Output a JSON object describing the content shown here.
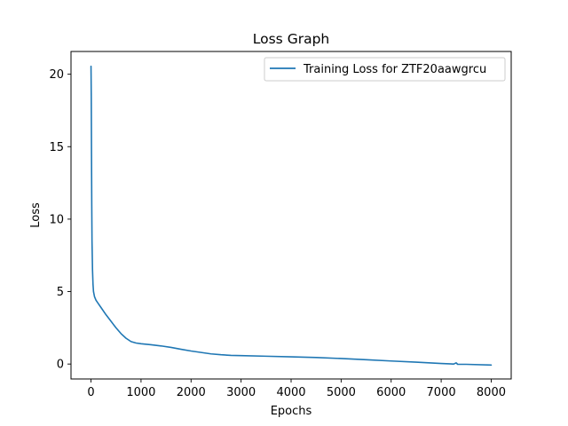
{
  "chart_data": {
    "type": "line",
    "title": "Loss Graph",
    "xlabel": "Epochs",
    "ylabel": "Loss",
    "xlim": [
      -400,
      8400
    ],
    "ylim": [
      -1.03,
      21.57
    ],
    "xticks": [
      0,
      1000,
      2000,
      3000,
      4000,
      5000,
      6000,
      7000,
      8000
    ],
    "yticks": [
      0,
      5,
      10,
      15,
      20
    ],
    "grid": false,
    "legend_position": "top-right",
    "series": [
      {
        "name": "Training Loss for ZTF20aawgrcu",
        "color": "#1f77b4",
        "points": [
          [
            0,
            20.55
          ],
          [
            5,
            18.5
          ],
          [
            10,
            14.5
          ],
          [
            15,
            11.0
          ],
          [
            20,
            8.5
          ],
          [
            30,
            6.5
          ],
          [
            40,
            5.5
          ],
          [
            50,
            5.0
          ],
          [
            70,
            4.65
          ],
          [
            100,
            4.4
          ],
          [
            150,
            4.15
          ],
          [
            200,
            3.9
          ],
          [
            300,
            3.4
          ],
          [
            400,
            2.95
          ],
          [
            500,
            2.5
          ],
          [
            600,
            2.1
          ],
          [
            700,
            1.78
          ],
          [
            800,
            1.55
          ],
          [
            900,
            1.45
          ],
          [
            1000,
            1.4
          ],
          [
            1200,
            1.33
          ],
          [
            1400,
            1.25
          ],
          [
            1600,
            1.15
          ],
          [
            1800,
            1.02
          ],
          [
            2000,
            0.9
          ],
          [
            2200,
            0.8
          ],
          [
            2400,
            0.7
          ],
          [
            2600,
            0.64
          ],
          [
            2800,
            0.6
          ],
          [
            3000,
            0.58
          ],
          [
            3500,
            0.54
          ],
          [
            4000,
            0.5
          ],
          [
            4500,
            0.45
          ],
          [
            5000,
            0.38
          ],
          [
            5500,
            0.3
          ],
          [
            6000,
            0.21
          ],
          [
            6500,
            0.13
          ],
          [
            7000,
            0.04
          ],
          [
            7250,
            0.0
          ],
          [
            7300,
            0.08
          ],
          [
            7330,
            -0.02
          ],
          [
            7500,
            -0.02
          ],
          [
            8000,
            -0.07
          ]
        ]
      }
    ]
  }
}
